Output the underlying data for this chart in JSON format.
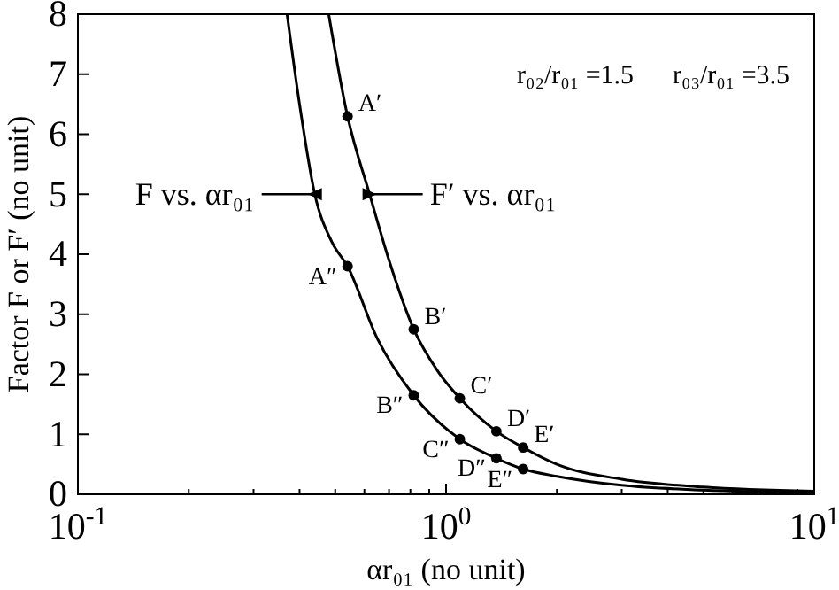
{
  "chart_data": {
    "type": "line",
    "xlabel": "αr₀₁ (no unit)",
    "ylabel": "Factor F or F′ (no unit)",
    "log": "x",
    "xlim": [
      0.1,
      10
    ],
    "ylim": [
      0,
      8
    ],
    "xticks": [
      {
        "value": 0.1,
        "label": "10$^{-1}$"
      },
      {
        "value": 0.2,
        "label": null
      },
      {
        "value": 0.3,
        "label": null
      },
      {
        "value": 0.4,
        "label": null
      },
      {
        "value": 0.5,
        "label": null
      },
      {
        "value": 0.6,
        "label": null
      },
      {
        "value": 0.7,
        "label": null
      },
      {
        "value": 0.8,
        "label": null
      },
      {
        "value": 0.9,
        "label": null
      },
      {
        "value": 1,
        "label": "10$^{0}$"
      },
      {
        "value": 2,
        "label": null
      },
      {
        "value": 3,
        "label": null
      },
      {
        "value": 4,
        "label": null
      },
      {
        "value": 5,
        "label": null
      },
      {
        "value": 6,
        "label": null
      },
      {
        "value": 7,
        "label": null
      },
      {
        "value": 8,
        "label": null
      },
      {
        "value": 9,
        "label": null
      },
      {
        "value": 10,
        "label": "10$^{1}$"
      }
    ],
    "yticks": [
      0,
      1,
      2,
      3,
      4,
      5,
      6,
      7,
      8
    ],
    "grid": false,
    "line_style": "solid",
    "series": [
      {
        "color": "#000000",
        "marker": "none",
        "x": [
          0.48,
          0.54,
          0.62,
          0.7,
          0.817,
          0.95,
          1.09,
          1.37,
          1.62,
          2,
          3,
          5,
          10
        ],
        "values": [
          8,
          6.3,
          5,
          3.9,
          2.75,
          2.05,
          1.6,
          1.05,
          0.78,
          0.5,
          0.25,
          0.12,
          0.05
        ]
      },
      {
        "color": "#000000",
        "marker": "none",
        "x": [
          0.37,
          0.4,
          0.44,
          0.49,
          0.54,
          0.65,
          0.817,
          1.09,
          1.37,
          1.62,
          2,
          3,
          5,
          10
        ],
        "values": [
          8,
          6.5,
          5,
          4.2,
          3.8,
          2.6,
          1.65,
          0.92,
          0.6,
          0.42,
          0.3,
          0.15,
          0.07,
          0.03
        ]
      },
      {
        "type": "scatter",
        "color": "#000000",
        "marker": "circle",
        "x": [
          0.54,
          0.817,
          1.09,
          1.37,
          1.62
        ],
        "values": [
          6.3,
          2.75,
          1.6,
          1.05,
          0.78
        ],
        "value_labels": [
          "A′",
          "B′",
          "C′",
          "D′",
          "E′"
        ]
      },
      {
        "type": "scatter",
        "color": "#000000",
        "marker": "circle",
        "x": [
          0.54,
          0.817,
          1.09,
          1.37,
          1.62
        ],
        "values": [
          3.8,
          1.65,
          0.92,
          0.6,
          0.42
        ],
        "value_labels": [
          "A″",
          "B″",
          "C″",
          "D″",
          "E″"
        ]
      }
    ],
    "annotations": [
      {
        "text": "F vs. αr₀₁",
        "x": 0.44,
        "y": 5
      },
      {
        "text": "F′ vs. αr₀₁",
        "x": 0.62,
        "y": 5
      },
      "r₀₂/r₀₁ =1.5",
      "r₀₃/r₀₁ =3.5"
    ]
  }
}
